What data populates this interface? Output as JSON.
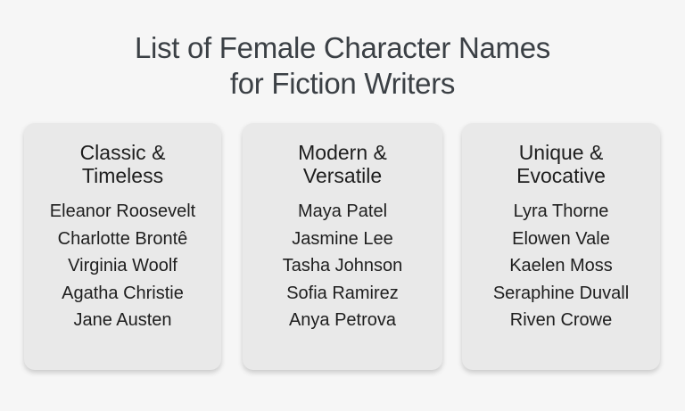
{
  "title": {
    "line1": "List of Female Character Names",
    "line2": "for Fiction Writers"
  },
  "columns": [
    {
      "heading_line1": "Classic &",
      "heading_line2": "Timeless",
      "names": [
        "Eleanor Roosevelt",
        "Charlotte Brontê",
        "Virginia Woolf",
        "Agatha Christie",
        "Jane Austen"
      ]
    },
    {
      "heading_line1": "Modern &",
      "heading_line2": "Versatile",
      "names": [
        "Maya Patel",
        "Jasmine Lee",
        "Tasha Johnson",
        "Sofia Ramirez",
        "Anya Petrova"
      ]
    },
    {
      "heading_line1": "Unique &",
      "heading_line2": "Evocative",
      "names": [
        "Lyra Thorne",
        "Elowen Vale",
        "Kaelen Moss",
        "Seraphine Duvall",
        "Riven Crowe"
      ]
    }
  ]
}
